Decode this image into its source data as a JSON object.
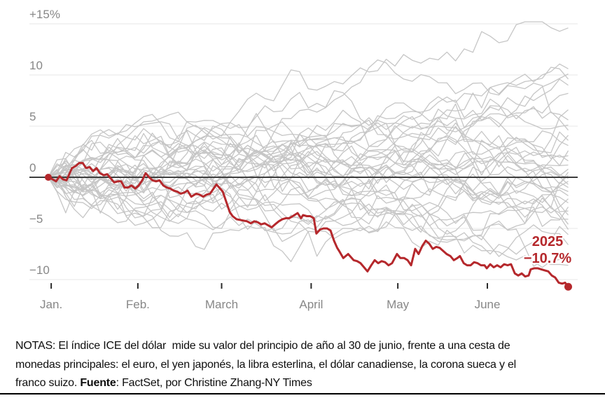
{
  "chart_data": {
    "type": "line",
    "title": "",
    "xlabel": "",
    "ylabel": "",
    "x_axis": {
      "unit": "day of year, Jan 1 to Jun 30",
      "range_days": [
        0,
        180
      ],
      "ticks": [
        {
          "day": 1,
          "label": "Jan."
        },
        {
          "day": 31,
          "label": "Feb."
        },
        {
          "day": 60,
          "label": "March"
        },
        {
          "day": 91,
          "label": "April"
        },
        {
          "day": 121,
          "label": "May"
        },
        {
          "day": 152,
          "label": "June"
        }
      ]
    },
    "y_axis": {
      "unit": "percent change since start of year",
      "ylim": [
        -12,
        16
      ],
      "zero_line": true,
      "ticks": [
        {
          "value": 15,
          "label": "+15%"
        },
        {
          "value": 10,
          "label": "10"
        },
        {
          "value": 5,
          "label": "5"
        },
        {
          "value": 0,
          "label": "0"
        },
        {
          "value": -5,
          "label": "−5"
        },
        {
          "value": -10,
          "label": "−10"
        }
      ]
    },
    "grid": true,
    "legend": false,
    "annotation": {
      "year": "2025",
      "value_label": "−10.7%"
    },
    "series": [
      {
        "name": "2025",
        "role": "highlight",
        "color": "#b5282c",
        "end_value_pct": -10.7,
        "points_day_pct": [
          [
            0,
            0
          ],
          [
            1.5,
            -0.2
          ],
          [
            2.7,
            -0.4
          ],
          [
            3.9,
            0.1
          ],
          [
            5.1,
            -0.2
          ],
          [
            6.3,
            -0.3
          ],
          [
            8.2,
            0.9
          ],
          [
            9.5,
            1.1
          ],
          [
            10.7,
            1.4
          ],
          [
            11.9,
            1.4
          ],
          [
            13.1,
            0.9
          ],
          [
            14.3,
            1
          ],
          [
            15.5,
            0.6
          ],
          [
            16.7,
            0.9
          ],
          [
            17.9,
            0.4
          ],
          [
            19.2,
            0.2
          ],
          [
            20.4,
            0.3
          ],
          [
            21.6,
            -0.1
          ],
          [
            22.8,
            -0.5
          ],
          [
            24,
            -0.4
          ],
          [
            25.2,
            -0.4
          ],
          [
            26.4,
            -1
          ],
          [
            27.6,
            -1
          ],
          [
            28.8,
            -0.8
          ],
          [
            30.1,
            -1.1
          ],
          [
            31.3,
            -0.8
          ],
          [
            32.5,
            -0.3
          ],
          [
            33.7,
            0.4
          ],
          [
            34.9,
            0
          ],
          [
            36.1,
            -0.3
          ],
          [
            37.3,
            -0.4
          ],
          [
            38.5,
            -0.3
          ],
          [
            39.8,
            -0.8
          ],
          [
            41,
            -1
          ],
          [
            42.2,
            -1.1
          ],
          [
            43.4,
            -1.3
          ],
          [
            44.6,
            -1.4
          ],
          [
            45.8,
            -1.6
          ],
          [
            47,
            -1.5
          ],
          [
            48.2,
            -1.3
          ],
          [
            49.5,
            -1.9
          ],
          [
            51.2,
            -1.6
          ],
          [
            52.4,
            -1.7
          ],
          [
            53.6,
            -1.9
          ],
          [
            54.8,
            -1.7
          ],
          [
            56,
            -1.6
          ],
          [
            58.2,
            -0.7
          ],
          [
            60.4,
            -1.4
          ],
          [
            61.6,
            -2.4
          ],
          [
            62.8,
            -3.4
          ],
          [
            63.8,
            -3.8
          ],
          [
            65.2,
            -4.1
          ],
          [
            66.9,
            -4.2
          ],
          [
            68.8,
            -4.3
          ],
          [
            70.1,
            -4.5
          ],
          [
            71.3,
            -4.3
          ],
          [
            72.5,
            -4.4
          ],
          [
            73.7,
            -4.6
          ],
          [
            74.9,
            -4.5
          ],
          [
            76.1,
            -4.7
          ],
          [
            77.3,
            -4.9
          ],
          [
            78.5,
            -4.6
          ],
          [
            79.8,
            -4.3
          ],
          [
            81,
            -4.1
          ],
          [
            82.2,
            -4
          ],
          [
            83.4,
            -4
          ],
          [
            84.6,
            -3.8
          ],
          [
            86.3,
            -3.5
          ],
          [
            87.5,
            -4
          ],
          [
            88.2,
            -3.7
          ],
          [
            89.5,
            -3.8
          ],
          [
            90.7,
            -3.8
          ],
          [
            91.9,
            -4
          ],
          [
            92.8,
            -5.5
          ],
          [
            94.1,
            -5.1
          ],
          [
            95.3,
            -5
          ],
          [
            96.5,
            -5
          ],
          [
            97.7,
            -5.2
          ],
          [
            98.9,
            -6.2
          ],
          [
            100,
            -6.9
          ],
          [
            100.9,
            -7.3
          ],
          [
            102.1,
            -7.9
          ],
          [
            103.8,
            -7.5
          ],
          [
            105.7,
            -8.1
          ],
          [
            106.9,
            -8.2
          ],
          [
            108.1,
            -8.4
          ],
          [
            109.3,
            -8.8
          ],
          [
            110.5,
            -9.2
          ],
          [
            111.8,
            -8.6
          ],
          [
            113,
            -8.1
          ],
          [
            114.2,
            -8.4
          ],
          [
            115.4,
            -8.2
          ],
          [
            116.6,
            -8.3
          ],
          [
            117.8,
            -8.6
          ],
          [
            119,
            -8.4
          ],
          [
            120.7,
            -7.5
          ],
          [
            121.9,
            -7.9
          ],
          [
            123.2,
            -7.9
          ],
          [
            124.4,
            -8.1
          ],
          [
            125.6,
            -8.6
          ],
          [
            127,
            -7
          ],
          [
            128.2,
            -7.5
          ],
          [
            129.5,
            -6.7
          ],
          [
            130.7,
            -6.2
          ],
          [
            131.9,
            -6.5
          ],
          [
            133.1,
            -7
          ],
          [
            134.3,
            -6.8
          ],
          [
            135.5,
            -6.9
          ],
          [
            136.7,
            -7.2
          ],
          [
            137.9,
            -7.5
          ],
          [
            139.2,
            -7.7
          ],
          [
            140.4,
            -8.1
          ],
          [
            141.6,
            -7.9
          ],
          [
            142.5,
            -7.7
          ],
          [
            143.8,
            -8.4
          ],
          [
            145,
            -8.6
          ],
          [
            146.2,
            -8.6
          ],
          [
            147.4,
            -8.3
          ],
          [
            148.6,
            -8.4
          ],
          [
            149.8,
            -8.6
          ],
          [
            151,
            -8.6
          ],
          [
            151.8,
            -8.9
          ],
          [
            153,
            -8.5
          ],
          [
            154.2,
            -8.8
          ],
          [
            155.4,
            -8.6
          ],
          [
            156.6,
            -8.8
          ],
          [
            157.8,
            -8.5
          ],
          [
            159,
            -8.6
          ],
          [
            160.2,
            -8.5
          ],
          [
            161.5,
            -9.4
          ],
          [
            162.7,
            -9.6
          ],
          [
            163.9,
            -9.4
          ],
          [
            165.1,
            -9.7
          ],
          [
            166.3,
            -9.6
          ],
          [
            167,
            -9
          ],
          [
            168.2,
            -8.9
          ],
          [
            169.5,
            -8.9
          ],
          [
            170.7,
            -9
          ],
          [
            171.9,
            -9.1
          ],
          [
            173.1,
            -9.2
          ],
          [
            174.3,
            -9.6
          ],
          [
            175.5,
            -9.8
          ],
          [
            176.7,
            -10.3
          ],
          [
            177.9,
            -10.4
          ],
          [
            178.9,
            -10.3
          ],
          [
            180,
            -10.7
          ]
        ]
      }
    ],
    "background_series": {
      "name": "prior-year YTD paths of the ICE U.S. Dollar Index",
      "color": "#c6c6c6",
      "count": 38,
      "start_value_pct": 0,
      "end_values_pct": [
        14.6,
        10.6,
        10.1,
        9.6,
        9.0,
        8.2,
        6.6,
        5.6,
        5.1,
        4.6,
        4.1,
        3.6,
        3.1,
        2.6,
        2.1,
        1.6,
        1.2,
        0.8,
        0.5,
        0.2,
        -0.1,
        -0.4,
        -0.7,
        -1.0,
        -1.4,
        -1.8,
        -2.1,
        -2.5,
        -2.9,
        -3.3,
        -3.7,
        -4.1,
        -4.6,
        -5.1,
        -5.6,
        -6.6,
        -7.6,
        -8.6
      ],
      "generation": {
        "seed": 11,
        "steps": 60,
        "volatility_pct_per_step": 0.8,
        "clamp_pct": [
          -11.2,
          15.2
        ]
      }
    }
  },
  "colors": {
    "highlight_red": "#b5282c",
    "background_gray": "#c6c6c6",
    "gridline": "#e7e7e7",
    "zero_line": "#3d3d3d",
    "axis_text": "#878787",
    "tick_mark": "#2b2b2b",
    "notes_text": "#0e0e0e",
    "bottom_rule": "#000000"
  },
  "notes": {
    "line1": "NOTAS: El índice ICE del dólar  mide su valor del principio de año al 30 de junio, frente a una cesta de",
    "line2": "monedas principales: el euro, el yen japonés, la libra esterlina, el dólar canadiense, la corona sueca y el",
    "line3_prefix": "franco suizo. ",
    "line3_source_label": "Fuente",
    "line3_rest": ": FactSet, por Christine Zhang-NY Times"
  }
}
